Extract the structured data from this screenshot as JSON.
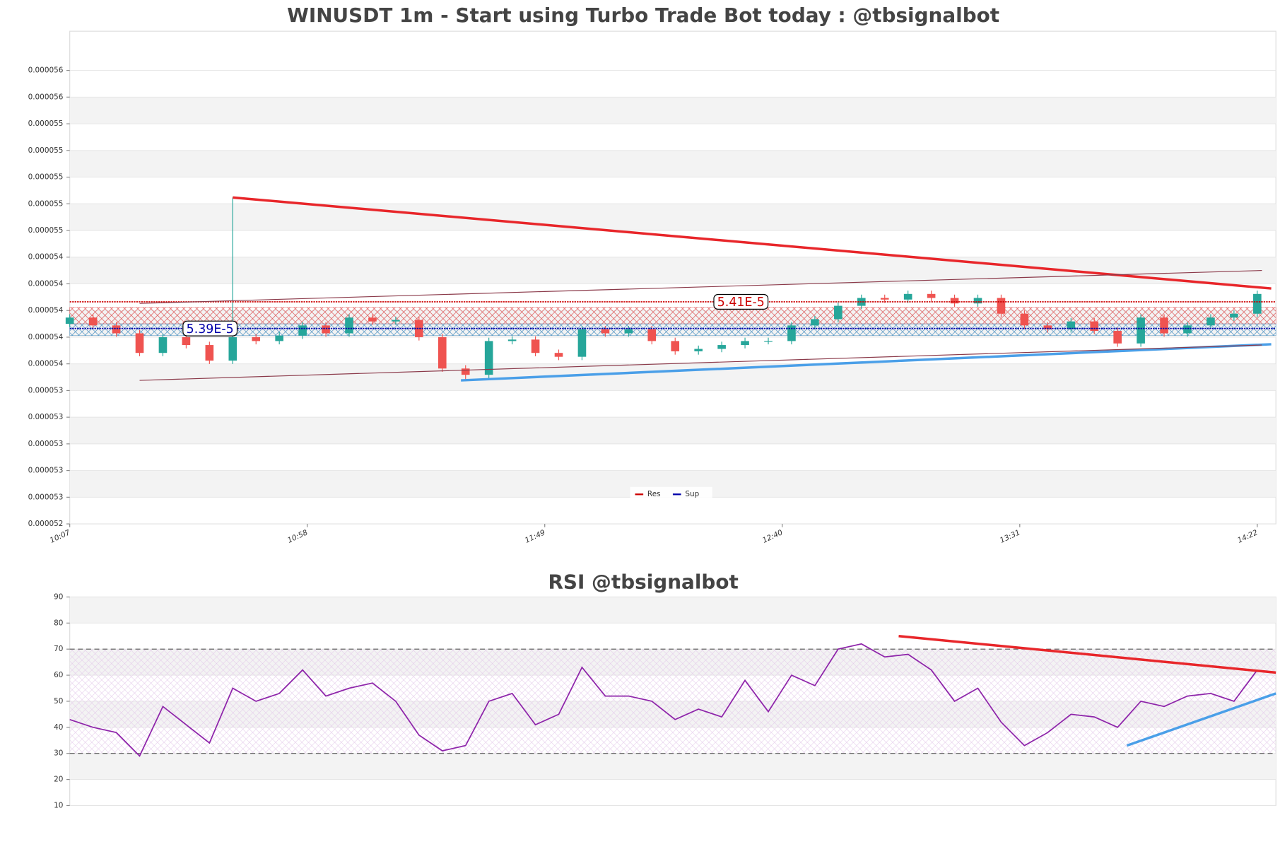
{
  "chart_data": [
    {
      "type": "candlestick",
      "title": "WINUSDT 1m - Start using Turbo Trade Bot today : @tbsignalbot",
      "x": [
        "10:07",
        "10:12",
        "10:17",
        "10:22",
        "10:27",
        "10:32",
        "10:37",
        "10:42",
        "10:47",
        "10:52",
        "10:57",
        "11:02",
        "11:07",
        "11:12",
        "11:17",
        "11:22",
        "11:27",
        "11:32",
        "11:37",
        "11:42",
        "11:47",
        "11:52",
        "11:57",
        "12:02",
        "12:07",
        "12:12",
        "12:17",
        "12:22",
        "12:27",
        "12:32",
        "12:37",
        "12:42",
        "12:47",
        "12:52",
        "12:57",
        "13:02",
        "13:07",
        "13:12",
        "13:17",
        "13:22",
        "13:27",
        "13:32",
        "13:37",
        "13:42",
        "13:47",
        "13:52",
        "13:57",
        "14:02",
        "14:07",
        "14:12",
        "14:17",
        "14:22"
      ],
      "open": [
        5.39e-05,
        5.3947e-05,
        5.3888e-05,
        5.3829e-05,
        5.3682e-05,
        5.38e-05,
        5.3741e-05,
        5.3624e-05,
        5.38e-05,
        5.3771e-05,
        5.3812e-05,
        5.3888e-05,
        5.3829e-05,
        5.3947e-05,
        5.3918e-05,
        5.3929e-05,
        5.38e-05,
        5.3565e-05,
        5.3518e-05,
        5.3771e-05,
        5.3782e-05,
        5.3682e-05,
        5.3653e-05,
        5.3859e-05,
        5.3829e-05,
        5.3859e-05,
        5.3771e-05,
        5.3694e-05,
        5.3712e-05,
        5.3741e-05,
        5.3771e-05,
        5.3771e-05,
        5.3888e-05,
        5.3935e-05,
        5.4035e-05,
        5.4094e-05,
        5.4082e-05,
        5.4124e-05,
        5.4094e-05,
        5.4053e-05,
        5.4094e-05,
        5.3976e-05,
        5.3888e-05,
        5.3859e-05,
        5.3918e-05,
        5.3847e-05,
        5.3753e-05,
        5.3947e-05,
        5.3829e-05,
        5.3888e-05,
        5.3947e-05,
        5.3976e-05
      ],
      "high": [
        5.3972e-05,
        5.3972e-05,
        5.3913e-05,
        5.3854e-05,
        5.3825e-05,
        5.3825e-05,
        5.3766e-05,
        5.4847e-05,
        5.3825e-05,
        5.3837e-05,
        5.3913e-05,
        5.3913e-05,
        5.3972e-05,
        5.3972e-05,
        5.3954e-05,
        5.3954e-05,
        5.3825e-05,
        5.359e-05,
        5.3796e-05,
        5.3807e-05,
        5.3807e-05,
        5.3707e-05,
        5.3884e-05,
        5.3884e-05,
        5.3884e-05,
        5.3884e-05,
        5.3796e-05,
        5.3737e-05,
        5.3766e-05,
        5.3796e-05,
        5.3796e-05,
        5.3913e-05,
        5.396e-05,
        5.406e-05,
        5.4119e-05,
        5.4119e-05,
        5.4149e-05,
        5.4149e-05,
        5.4119e-05,
        5.4119e-05,
        5.4119e-05,
        5.4001e-05,
        5.3913e-05,
        5.3943e-05,
        5.3943e-05,
        5.3872e-05,
        5.3972e-05,
        5.3972e-05,
        5.3913e-05,
        5.3972e-05,
        5.4001e-05,
        5.4149e-05
      ],
      "low": [
        5.3875e-05,
        5.3863e-05,
        5.3804e-05,
        5.3657e-05,
        5.3657e-05,
        5.3716e-05,
        5.3599e-05,
        5.3599e-05,
        5.3746e-05,
        5.3746e-05,
        5.3787e-05,
        5.3804e-05,
        5.3804e-05,
        5.3893e-05,
        5.3893e-05,
        5.3775e-05,
        5.354e-05,
        5.3476e-05,
        5.3493e-05,
        5.3746e-05,
        5.3657e-05,
        5.3628e-05,
        5.3628e-05,
        5.3804e-05,
        5.3804e-05,
        5.3746e-05,
        5.3669e-05,
        5.3669e-05,
        5.3687e-05,
        5.3716e-05,
        5.3746e-05,
        5.3746e-05,
        5.3863e-05,
        5.391e-05,
        5.401e-05,
        5.4057e-05,
        5.4057e-05,
        5.4069e-05,
        5.4028e-05,
        5.4028e-05,
        5.3951e-05,
        5.3863e-05,
        5.3834e-05,
        5.3834e-05,
        5.3822e-05,
        5.3728e-05,
        5.3728e-05,
        5.3804e-05,
        5.3804e-05,
        5.3863e-05,
        5.3922e-05,
        5.3951e-05
      ],
      "close": [
        5.3947e-05,
        5.3888e-05,
        5.3829e-05,
        5.3682e-05,
        5.38e-05,
        5.3741e-05,
        5.3624e-05,
        5.38e-05,
        5.3771e-05,
        5.3812e-05,
        5.3888e-05,
        5.3829e-05,
        5.3947e-05,
        5.3918e-05,
        5.3929e-05,
        5.38e-05,
        5.3565e-05,
        5.3518e-05,
        5.3771e-05,
        5.3782e-05,
        5.3682e-05,
        5.3653e-05,
        5.3859e-05,
        5.3829e-05,
        5.3859e-05,
        5.3771e-05,
        5.3694e-05,
        5.3712e-05,
        5.3741e-05,
        5.3771e-05,
        5.3771e-05,
        5.3888e-05,
        5.3935e-05,
        5.4035e-05,
        5.4094e-05,
        5.4082e-05,
        5.4124e-05,
        5.4094e-05,
        5.4053e-05,
        5.4094e-05,
        5.3976e-05,
        5.3888e-05,
        5.3859e-05,
        5.3918e-05,
        5.3847e-05,
        5.3753e-05,
        5.3947e-05,
        5.3829e-05,
        5.3888e-05,
        5.3947e-05,
        5.3976e-05,
        5.4124e-05
      ],
      "up_color": "#26a69a",
      "down_color": "#ef5350",
      "xlim": [
        "10:07",
        "14:26"
      ],
      "xticks": [
        "10:07",
        "10:58",
        "11:49",
        "12:40",
        "13:31",
        "14:22"
      ],
      "ylim": [
        5.24e-05,
        5.6094e-05
      ],
      "yticks": [
        {
          "value": 5.24e-05,
          "label": "0.000052"
        },
        {
          "value": 5.26e-05,
          "label": "0.000053"
        },
        {
          "value": 5.28e-05,
          "label": "0.000053"
        },
        {
          "value": 5.3e-05,
          "label": "0.000053"
        },
        {
          "value": 5.32e-05,
          "label": "0.000053"
        },
        {
          "value": 5.34e-05,
          "label": "0.000053"
        },
        {
          "value": 5.36e-05,
          "label": "0.000054"
        },
        {
          "value": 5.38e-05,
          "label": "0.000054"
        },
        {
          "value": 5.4e-05,
          "label": "0.000054"
        },
        {
          "value": 5.42e-05,
          "label": "0.000054"
        },
        {
          "value": 5.44e-05,
          "label": "0.000054"
        },
        {
          "value": 5.46e-05,
          "label": "0.000055"
        },
        {
          "value": 5.48e-05,
          "label": "0.000055"
        },
        {
          "value": 5.5e-05,
          "label": "0.000055"
        },
        {
          "value": 5.52e-05,
          "label": "0.000055"
        },
        {
          "value": 5.54e-05,
          "label": "0.000055"
        },
        {
          "value": 5.56e-05,
          "label": "0.000056"
        },
        {
          "value": 5.58e-05,
          "label": "0.000056"
        }
      ],
      "grid": true,
      "zones": [
        {
          "color": "#d62728",
          "range": [
            5.39e-05,
            5.4024e-05
          ]
        },
        {
          "color": "#1f77b4",
          "range": [
            5.3812e-05,
            5.39e-05
          ]
        }
      ],
      "levels": [
        {
          "name": "Res",
          "color": "#cc0000",
          "value": 5.4065e-05,
          "label": "5.41E-5"
        },
        {
          "name": "Sup",
          "color": "#0000aa",
          "value": 5.3865e-05,
          "label": "5.39E-5"
        }
      ],
      "trendlines": [
        {
          "color": "#e8262a",
          "width": 3,
          "x": [
            "10:42",
            "14:25"
          ],
          "values": [
            5.4847e-05,
            5.4165e-05
          ]
        },
        {
          "color": "#4a9fe8",
          "width": 3,
          "x": [
            "11:31",
            "14:25"
          ],
          "values": [
            5.3476e-05,
            5.3747e-05
          ]
        },
        {
          "color": "#8b3a4a",
          "width": 1,
          "x": [
            "10:22",
            "14:23"
          ],
          "values": [
            5.4053e-05,
            5.43e-05
          ]
        },
        {
          "color": "#8b3a4a",
          "width": 1,
          "x": [
            "10:22",
            "14:23"
          ],
          "values": [
            5.3476e-05,
            5.3741e-05
          ]
        }
      ],
      "legend": "lower center"
    },
    {
      "type": "line",
      "title": "RSI @tbsignalbot",
      "x": [
        "10:07",
        "10:12",
        "10:17",
        "10:22",
        "10:27",
        "10:32",
        "10:37",
        "10:42",
        "10:47",
        "10:52",
        "10:57",
        "11:02",
        "11:07",
        "11:12",
        "11:17",
        "11:22",
        "11:27",
        "11:32",
        "11:37",
        "11:42",
        "11:47",
        "11:52",
        "11:57",
        "12:02",
        "12:07",
        "12:12",
        "12:17",
        "12:22",
        "12:27",
        "12:32",
        "12:37",
        "12:42",
        "12:47",
        "12:52",
        "12:57",
        "13:02",
        "13:07",
        "13:12",
        "13:17",
        "13:22",
        "13:27",
        "13:32",
        "13:37",
        "13:42",
        "13:47",
        "13:52",
        "13:57",
        "14:02",
        "14:07",
        "14:12",
        "14:17",
        "14:22"
      ],
      "values": [
        43,
        40,
        38,
        29,
        48,
        41,
        34,
        55,
        50,
        53,
        62,
        52,
        55,
        57,
        50,
        37,
        31,
        33,
        50,
        53,
        41,
        45,
        63,
        52,
        52,
        50,
        43,
        47,
        44,
        58,
        46,
        60,
        56,
        70,
        72,
        67,
        68,
        62,
        50,
        55,
        42,
        33,
        38,
        45,
        44,
        40,
        50,
        48,
        52,
        53,
        50,
        62
      ],
      "color": "#8e24aa",
      "xlim": [
        "10:07",
        "14:26"
      ],
      "ylim": [
        10,
        90
      ],
      "yticks": [
        10,
        20,
        30,
        40,
        50,
        60,
        70,
        80,
        90
      ],
      "grid": true,
      "band": [
        30,
        70
      ],
      "hlines": [
        30,
        70
      ],
      "trendlines": [
        {
          "color": "#e8262a",
          "width": 3,
          "x": [
            "13:05",
            "14:26"
          ],
          "values": [
            75,
            61
          ]
        },
        {
          "color": "#4a9fe8",
          "width": 3,
          "x": [
            "13:54",
            "14:26"
          ],
          "values": [
            33,
            53
          ]
        }
      ]
    }
  ]
}
